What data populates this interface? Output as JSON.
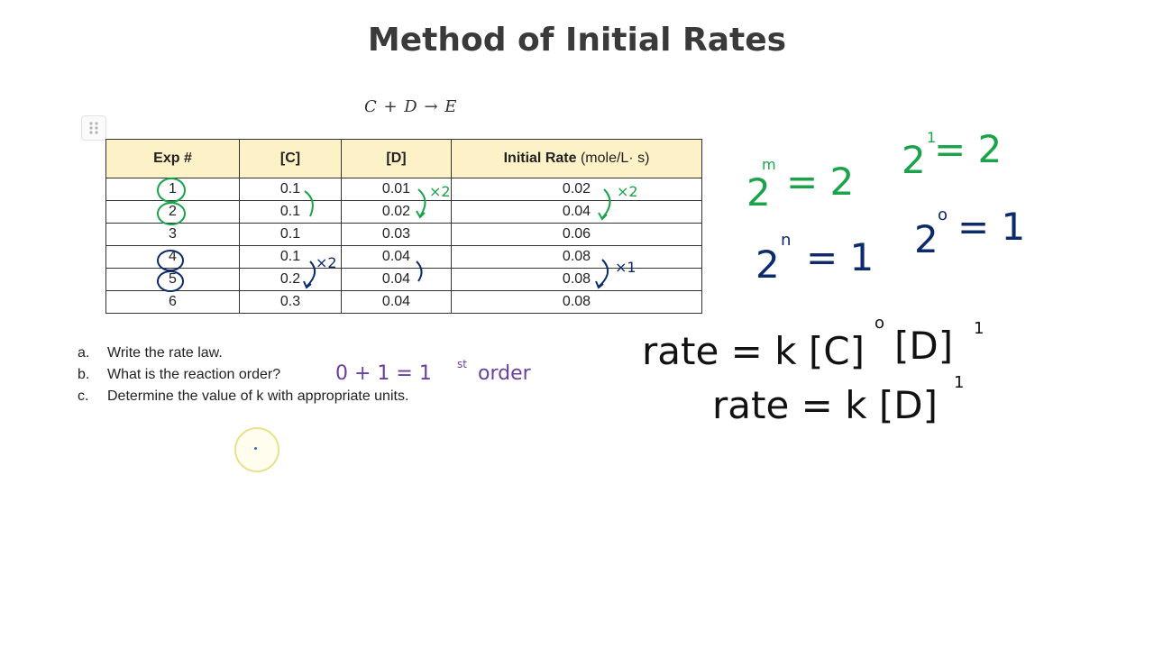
{
  "title": "Method of Initial Rates",
  "equation": "C  +  D  →  E",
  "table": {
    "headers": {
      "exp": "Exp #",
      "c": "[C]",
      "d": "[D]",
      "rate": "Initial Rate",
      "rate_unit": "(mole/L· s)"
    },
    "rows": [
      {
        "exp": "1",
        "c": "0.1",
        "d": "0.01",
        "rate": "0.02"
      },
      {
        "exp": "2",
        "c": "0.1",
        "d": "0.02",
        "rate": "0.04"
      },
      {
        "exp": "3",
        "c": "0.1",
        "d": "0.03",
        "rate": "0.06"
      },
      {
        "exp": "4",
        "c": "0.1",
        "d": "0.04",
        "rate": "0.08"
      },
      {
        "exp": "5",
        "c": "0.2",
        "d": "0.04",
        "rate": "0.08"
      },
      {
        "exp": "6",
        "c": "0.3",
        "d": "0.04",
        "rate": "0.08"
      }
    ]
  },
  "questions": [
    {
      "letter": "a.",
      "text": "Write the rate law."
    },
    {
      "letter": "b.",
      "text": "What is the reaction order?"
    },
    {
      "letter": "c.",
      "text": "Determine the value of k with appropriate units."
    }
  ],
  "annotations": {
    "times2_d": "×2",
    "times2_rate": "×2",
    "times2_c": "×2",
    "times1_rate": "×1",
    "order_answer": "0 + 1  =  1",
    "order_sup": "st",
    "order_word": "order",
    "eq1_base": "2",
    "eq1_exp": "m",
    "eq1_rhs": "= 2",
    "eq2_base": "2",
    "eq2_exp": "1",
    "eq2_rhs": "= 2",
    "eq3_base": "2",
    "eq3_exp": "n",
    "eq3_rhs": "= 1",
    "eq4_base": "2",
    "eq4_exp": "o",
    "eq4_rhs": "= 1",
    "law1": "rate = k [C]",
    "law1_exp1": "o",
    "law1_mid": "[D]",
    "law1_exp2": "1",
    "law2": "rate = k [D]",
    "law2_exp": "1"
  },
  "colors": {
    "green_ink": "#1aa34a",
    "navy_ink": "#0d2a6b",
    "purple_ink": "#6b3fa0",
    "black_ink": "#111111",
    "header_fill": "#fdf1c7"
  }
}
